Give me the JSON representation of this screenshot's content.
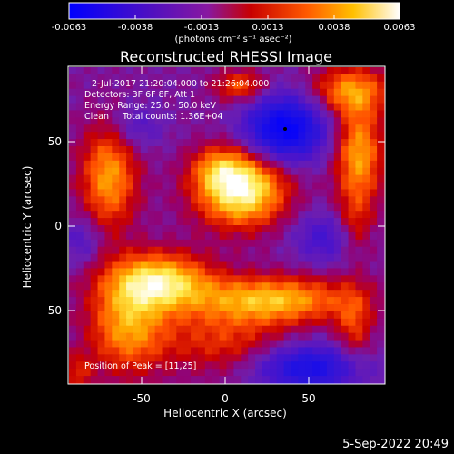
{
  "colorbar": {
    "tick_labels": [
      "-0.0063",
      "-0.0038",
      "-0.0013",
      "0.0013",
      "0.0038",
      "0.0063"
    ],
    "units": "(photons cm⁻² s⁻¹ asec⁻²)"
  },
  "title": "Reconstructed RHESSI Image",
  "info": {
    "time_range": "2-Jul-2017 21:20:04.000 to 21:26:04.000",
    "detectors": "Detectors: 3F 6F 8F, Att 1",
    "energy": "Energy Range: 25.0 - 50.0 keV",
    "clean": "Clean     Total counts: 1.36E+04"
  },
  "peak": "Position of Peak = [11,25]",
  "axes": {
    "x_label": "Heliocentric X (arcsec)",
    "y_label": "Heliocentric Y (arcsec)",
    "x_ticks": [
      "-50",
      "0",
      "50"
    ],
    "y_ticks": [
      "50",
      "0",
      "-50"
    ],
    "x_range": [
      -95,
      95
    ],
    "y_range": [
      -95,
      95
    ]
  },
  "footer_date": "5-Sep-2022 20:49",
  "colors": {
    "background": "#000000",
    "peak_min": "#0000ff",
    "peak_max": "#ffffff"
  }
}
